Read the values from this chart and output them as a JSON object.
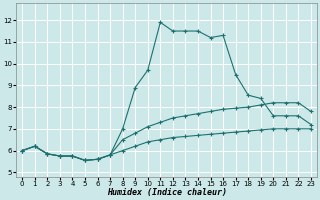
{
  "xlabel": "Humidex (Indice chaleur)",
  "bg_color": "#cce8e8",
  "grid_color": "#ffffff",
  "line_color": "#1e7070",
  "xlim": [
    -0.5,
    23.5
  ],
  "ylim": [
    4.8,
    12.8
  ],
  "yticks": [
    5,
    6,
    7,
    8,
    9,
    10,
    11,
    12
  ],
  "xticks": [
    0,
    1,
    2,
    3,
    4,
    5,
    6,
    7,
    8,
    9,
    10,
    11,
    12,
    13,
    14,
    15,
    16,
    17,
    18,
    19,
    20,
    21,
    22,
    23
  ],
  "series": [
    {
      "x": [
        0,
        1,
        2,
        3,
        4,
        5,
        6,
        7,
        8,
        9,
        10,
        11,
        12,
        13,
        14,
        15,
        16,
        17,
        18,
        19,
        20,
        21,
        22,
        23
      ],
      "y": [
        6.0,
        6.2,
        5.85,
        5.75,
        5.75,
        5.55,
        5.6,
        5.8,
        7.0,
        8.9,
        9.7,
        11.9,
        11.5,
        11.5,
        11.5,
        11.2,
        11.3,
        9.5,
        8.55,
        8.4,
        7.6,
        7.6,
        7.6,
        7.2
      ]
    },
    {
      "x": [
        0,
        1,
        2,
        3,
        4,
        5,
        6,
        7,
        8,
        9,
        10,
        11,
        12,
        13,
        14,
        15,
        16,
        17,
        18,
        19,
        20,
        21,
        22,
        23
      ],
      "y": [
        6.0,
        6.2,
        5.85,
        5.75,
        5.75,
        5.55,
        5.6,
        5.8,
        6.5,
        6.8,
        7.1,
        7.3,
        7.5,
        7.6,
        7.7,
        7.8,
        7.9,
        7.95,
        8.0,
        8.1,
        8.2,
        8.2,
        8.2,
        7.8
      ]
    },
    {
      "x": [
        0,
        1,
        2,
        3,
        4,
        5,
        6,
        7,
        8,
        9,
        10,
        11,
        12,
        13,
        14,
        15,
        16,
        17,
        18,
        19,
        20,
        21,
        22,
        23
      ],
      "y": [
        6.0,
        6.2,
        5.85,
        5.75,
        5.75,
        5.55,
        5.6,
        5.8,
        6.0,
        6.2,
        6.4,
        6.5,
        6.6,
        6.65,
        6.7,
        6.75,
        6.8,
        6.85,
        6.9,
        6.95,
        7.0,
        7.0,
        7.0,
        7.0
      ]
    }
  ]
}
